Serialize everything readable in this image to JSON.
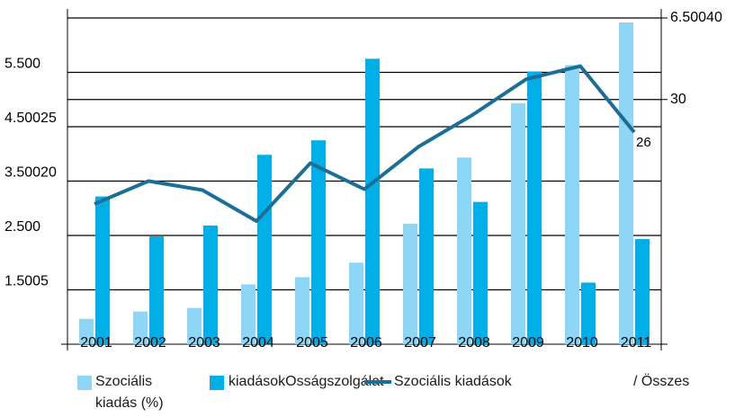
{
  "chart_data": {
    "type": "bar_line",
    "categories": [
      "2001",
      "2002",
      "2003",
      "2004",
      "2005",
      "2006",
      "2007",
      "2008",
      "2009",
      "2010",
      "2011"
    ],
    "series": [
      {
        "name": "Szociális kiadás (%)",
        "color": "#8dd6f5",
        "values": [
          967,
          1100,
          1167,
          1600,
          1733,
          2000,
          2717,
          3933,
          4933,
          5633,
          6417
        ]
      },
      {
        "name": "kiadásokOsságszolgálat",
        "color": "#00aee8",
        "values": [
          3217,
          2483,
          2683,
          3983,
          4250,
          5750,
          3733,
          3117,
          5517,
          1633,
          2433
        ]
      },
      {
        "name": "Szociális kiadások",
        "color": "#1b6f96",
        "axis": "y2",
        "values": [
          17.2,
          20,
          18.9,
          15.1,
          22.2,
          19,
          24.2,
          28.1,
          32.5,
          34.1,
          26
        ],
        "value_labels": [
          null,
          null,
          null,
          null,
          null,
          null,
          null,
          null,
          null,
          null,
          "26"
        ]
      }
    ],
    "annotation": "/ Összes",
    "ylim": [
      500,
      6500
    ],
    "yticks": [
      {
        "value": 1500,
        "label": "1.5005"
      },
      {
        "value": 2500,
        "label": "2.500"
      },
      {
        "value": 3500,
        "label": "3.50020"
      },
      {
        "value": 4500,
        "label": "4.50025"
      },
      {
        "value": 5500,
        "label": "5.500"
      }
    ],
    "y2lim": [
      0,
      40
    ],
    "y2ticks": [
      30,
      {
        "value": 40,
        "label": "6.50040"
      }
    ],
    "grid": true
  }
}
